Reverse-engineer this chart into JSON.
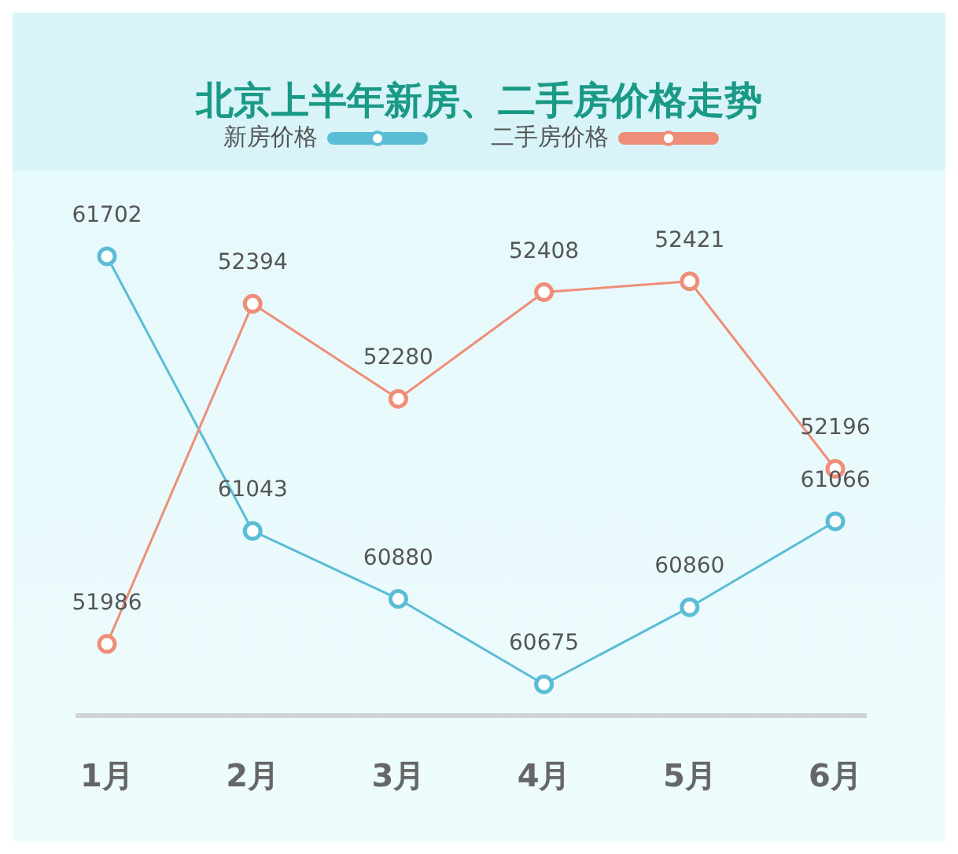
{
  "chart_data": {
    "type": "line",
    "title": "北京上半年新房、二手房价格走势",
    "categories": [
      "1月",
      "2月",
      "3月",
      "4月",
      "5月",
      "6月"
    ],
    "series": [
      {
        "name": "新房价格",
        "color": "#5bbcd6",
        "values": [
          61702,
          61043,
          60880,
          60675,
          60860,
          61066
        ]
      },
      {
        "name": "二手房价格",
        "color": "#ef8e78",
        "values": [
          51986,
          52394,
          52280,
          52408,
          52421,
          52196
        ],
        "axis": "y2"
      }
    ],
    "tick_labels": "x",
    "data_labels": true,
    "marker": "circle",
    "grid": false,
    "legend": "top"
  }
}
